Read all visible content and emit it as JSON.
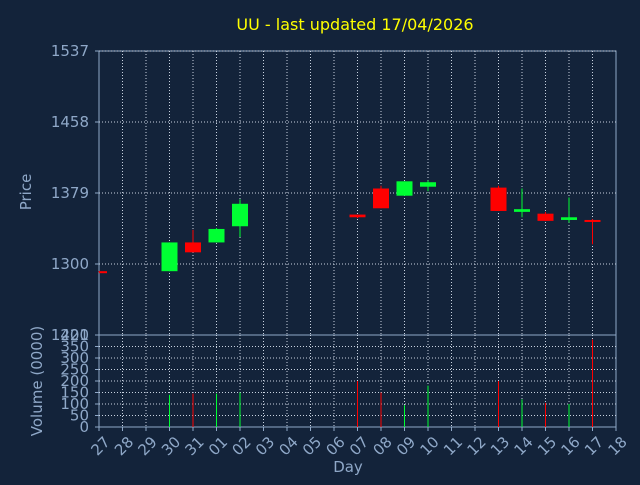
{
  "chart_data": [
    {
      "type": "candlestick",
      "title": "UU - last updated 17/04/2026",
      "ylabel": "Price",
      "ylim": [
        1221,
        1537
      ],
      "yticks": [
        1537,
        1458,
        1379,
        1300,
        1221
      ],
      "grid": true,
      "categories": [
        "27",
        "28",
        "29",
        "30",
        "31",
        "01",
        "02",
        "03",
        "04",
        "05",
        "06",
        "07",
        "08",
        "09",
        "10",
        "11",
        "12",
        "13",
        "14",
        "15",
        "16",
        "17",
        "18"
      ],
      "candles": [
        {
          "day": "27",
          "open": 1292,
          "high": 1292,
          "low": 1291,
          "close": 1291
        },
        {
          "day": "30",
          "open": 1292,
          "high": 1324,
          "low": 1292,
          "close": 1324
        },
        {
          "day": "31",
          "open": 1324,
          "high": 1338,
          "low": 1313,
          "close": 1313
        },
        {
          "day": "01",
          "open": 1324,
          "high": 1340,
          "low": 1324,
          "close": 1339
        },
        {
          "day": "02",
          "open": 1342,
          "high": 1372,
          "low": 1330,
          "close": 1367
        },
        {
          "day": "07",
          "open": 1355,
          "high": 1355,
          "low": 1351,
          "close": 1352
        },
        {
          "day": "08",
          "open": 1384,
          "high": 1387,
          "low": 1362,
          "close": 1362
        },
        {
          "day": "09",
          "open": 1376,
          "high": 1392,
          "low": 1376,
          "close": 1392
        },
        {
          "day": "10",
          "open": 1386,
          "high": 1393,
          "low": 1381,
          "close": 1391
        },
        {
          "day": "13",
          "open": 1385,
          "high": 1387,
          "low": 1359,
          "close": 1359
        },
        {
          "day": "14",
          "open": 1358,
          "high": 1384,
          "low": 1352,
          "close": 1361
        },
        {
          "day": "15",
          "open": 1356,
          "high": 1358,
          "low": 1348,
          "close": 1348
        },
        {
          "day": "16",
          "open": 1349,
          "high": 1374,
          "low": 1346,
          "close": 1352
        },
        {
          "day": "17",
          "open": 1349,
          "high": 1350,
          "low": 1322,
          "close": 1348
        }
      ],
      "colors": {
        "up": "#00ff33",
        "down": "#ff0000",
        "text": "#ffff00"
      }
    },
    {
      "type": "bar",
      "xlabel": "Day",
      "ylabel": "Volume (0000)",
      "ylim": [
        0,
        400
      ],
      "yticks": [
        0,
        50,
        100,
        150,
        200,
        250,
        300,
        350,
        400
      ],
      "grid": true,
      "categories": [
        "27",
        "28",
        "29",
        "30",
        "31",
        "01",
        "02",
        "03",
        "04",
        "05",
        "06",
        "07",
        "08",
        "09",
        "10",
        "11",
        "12",
        "13",
        "14",
        "15",
        "16",
        "17",
        "18"
      ],
      "values": [
        0,
        0,
        0,
        140,
        145,
        145,
        150,
        0,
        0,
        0,
        0,
        200,
        150,
        95,
        180,
        0,
        0,
        200,
        120,
        105,
        100,
        380,
        0
      ],
      "directions": [
        "down",
        "",
        "",
        "up",
        "down",
        "up",
        "up",
        "",
        "",
        "",
        "",
        "down",
        "down",
        "up",
        "up",
        "",
        "",
        "down",
        "up",
        "down",
        "up",
        "down",
        ""
      ]
    }
  ]
}
